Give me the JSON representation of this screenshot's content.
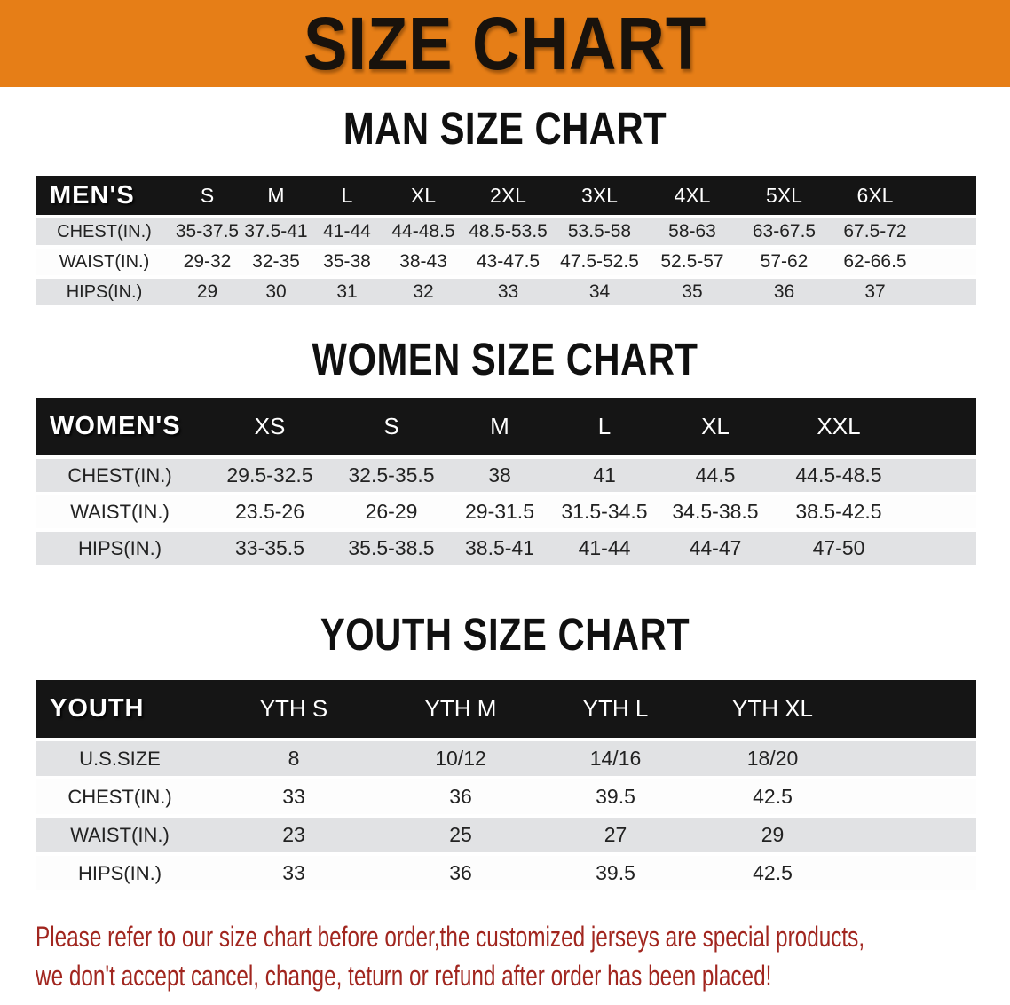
{
  "banner": {
    "title": "SIZE CHART",
    "bg_color": "#e67e17"
  },
  "chart_data": [
    {
      "type": "table",
      "title": "MAN SIZE CHART",
      "corner_label": "MEN'S",
      "columns": [
        "S",
        "M",
        "L",
        "XL",
        "2XL",
        "3XL",
        "4XL",
        "5XL",
        "6XL"
      ],
      "rows": [
        {
          "label": "CHEST(IN.)",
          "values": [
            "35-37.5",
            "37.5-41",
            "41-44",
            "44-48.5",
            "48.5-53.5",
            "53.5-58",
            "58-63",
            "63-67.5",
            "67.5-72"
          ]
        },
        {
          "label": "WAIST(IN.)",
          "values": [
            "29-32",
            "32-35",
            "35-38",
            "38-43",
            "43-47.5",
            "47.5-52.5",
            "52.5-57",
            "57-62",
            "62-66.5"
          ]
        },
        {
          "label": "HIPS(IN.)",
          "values": [
            "29",
            "30",
            "31",
            "32",
            "33",
            "34",
            "35",
            "36",
            "37"
          ]
        }
      ]
    },
    {
      "type": "table",
      "title": "WOMEN SIZE CHART",
      "corner_label": "WOMEN'S",
      "columns": [
        "XS",
        "S",
        "M",
        "L",
        "XL",
        "XXL"
      ],
      "rows": [
        {
          "label": "CHEST(IN.)",
          "values": [
            "29.5-32.5",
            "32.5-35.5",
            "38",
            "41",
            "44.5",
            "44.5-48.5"
          ]
        },
        {
          "label": "WAIST(IN.)",
          "values": [
            "23.5-26",
            "26-29",
            "29-31.5",
            "31.5-34.5",
            "34.5-38.5",
            "38.5-42.5"
          ]
        },
        {
          "label": "HIPS(IN.)",
          "values": [
            "33-35.5",
            "35.5-38.5",
            "38.5-41",
            "41-44",
            "44-47",
            "47-50"
          ]
        }
      ]
    },
    {
      "type": "table",
      "title": "YOUTH SIZE CHART",
      "corner_label": "YOUTH",
      "columns": [
        "YTH S",
        "YTH M",
        "YTH L",
        "YTH XL"
      ],
      "rows": [
        {
          "label": "U.S.SIZE",
          "values": [
            "8",
            "10/12",
            "14/16",
            "18/20"
          ]
        },
        {
          "label": "CHEST(IN.)",
          "values": [
            "33",
            "36",
            "39.5",
            "42.5"
          ]
        },
        {
          "label": "WAIST(IN.)",
          "values": [
            "23",
            "25",
            "27",
            "29"
          ]
        },
        {
          "label": "HIPS(IN.)",
          "values": [
            "33",
            "36",
            "39.5",
            "42.5"
          ]
        }
      ]
    }
  ],
  "note": {
    "line1": "Please refer to our size chart before order,the customized jerseys are special products,",
    "line2": "we don't accept cancel, change, teturn or refund after order has been placed!",
    "color": "#a1261f"
  }
}
